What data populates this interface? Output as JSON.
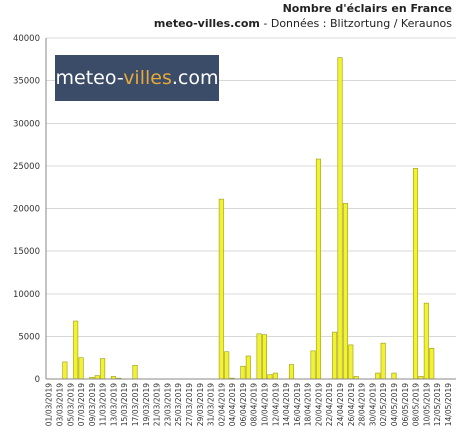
{
  "header": {
    "title": "Nombre d'éclairs en France",
    "brand": "meteo-villes.com",
    "source": " - Données : Blitzortung / Keraunos"
  },
  "logo": {
    "part1": "meteo-",
    "part2": "villes",
    "part3": ".com"
  },
  "colors": {
    "bar_fill": "#f2f22e",
    "bar_stroke": "#9a9a18",
    "logo_bg": "#3a4c68",
    "logo_accent": "#e8a83a"
  },
  "chart_data": {
    "type": "bar",
    "ylim": [
      0,
      40000
    ],
    "yticks": [
      0,
      5000,
      10000,
      15000,
      20000,
      25000,
      30000,
      35000,
      40000
    ],
    "grid": true,
    "legend": "none",
    "categories": [
      "01/03/2019",
      "02/03/2019",
      "03/03/2019",
      "04/03/2019",
      "05/03/2019",
      "06/03/2019",
      "07/03/2019",
      "08/03/2019",
      "09/03/2019",
      "10/03/2019",
      "11/03/2019",
      "12/03/2019",
      "13/03/2019",
      "14/03/2019",
      "15/03/2019",
      "16/03/2019",
      "17/03/2019",
      "18/03/2019",
      "19/03/2019",
      "20/03/2019",
      "21/03/2019",
      "22/03/2019",
      "23/03/2019",
      "24/03/2019",
      "25/03/2019",
      "26/03/2019",
      "27/03/2019",
      "28/03/2019",
      "29/03/2019",
      "30/03/2019",
      "31/03/2019",
      "01/04/2019",
      "02/04/2019",
      "03/04/2019",
      "04/04/2019",
      "05/04/2019",
      "06/04/2019",
      "07/04/2019",
      "08/04/2019",
      "09/04/2019",
      "10/04/2019",
      "11/04/2019",
      "12/04/2019",
      "13/04/2019",
      "14/04/2019",
      "15/04/2019",
      "16/04/2019",
      "17/04/2019",
      "18/04/2019",
      "19/04/2019",
      "20/04/2019",
      "21/04/2019",
      "22/04/2019",
      "23/04/2019",
      "24/04/2019",
      "25/04/2019",
      "26/04/2019",
      "27/04/2019",
      "28/04/2019",
      "29/04/2019",
      "30/04/2019",
      "01/05/2019",
      "02/05/2019",
      "03/05/2019",
      "04/05/2019",
      "05/05/2019",
      "06/05/2019",
      "07/05/2019",
      "08/05/2019",
      "09/05/2019",
      "10/05/2019",
      "11/05/2019",
      "12/05/2019",
      "13/05/2019",
      "14/05/2019",
      "15/05/2019"
    ],
    "tick_labels": [
      "01/03/2019",
      "03/03/2019",
      "05/03/2019",
      "07/03/2019",
      "09/03/2019",
      "11/03/2019",
      "13/03/2019",
      "15/03/2019",
      "17/03/2019",
      "19/03/2019",
      "21/03/2019",
      "23/03/2019",
      "25/03/2019",
      "27/03/2019",
      "29/03/2019",
      "31/03/2019",
      "02/04/2019",
      "04/04/2019",
      "06/04/2019",
      "08/04/2019",
      "10/04/2019",
      "12/04/2019",
      "14/04/2019",
      "16/04/2019",
      "18/04/2019",
      "20/04/2019",
      "22/04/2019",
      "24/04/2019",
      "26/04/2019",
      "28/04/2019",
      "30/04/2019",
      "02/05/2019",
      "04/05/2019",
      "06/05/2019",
      "08/05/2019",
      "10/05/2019",
      "12/05/2019",
      "14/05/2019"
    ],
    "values": [
      0,
      0,
      0,
      2000,
      0,
      6800,
      2500,
      0,
      200,
      400,
      2400,
      0,
      300,
      100,
      0,
      0,
      1600,
      0,
      0,
      0,
      0,
      0,
      0,
      0,
      0,
      0,
      0,
      0,
      0,
      0,
      0,
      0,
      21100,
      3200,
      100,
      0,
      1500,
      2700,
      0,
      5300,
      5200,
      500,
      700,
      0,
      0,
      1700,
      0,
      0,
      0,
      3300,
      25800,
      0,
      0,
      5500,
      37700,
      20600,
      4000,
      300,
      0,
      0,
      0,
      700,
      4200,
      0,
      700,
      0,
      0,
      0,
      24700,
      300,
      8900,
      3600,
      0,
      0,
      0,
      0
    ]
  }
}
